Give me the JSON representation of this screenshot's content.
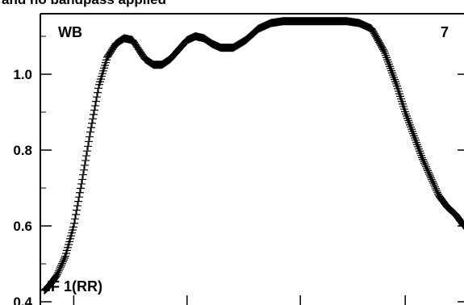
{
  "chart_data": {
    "type": "scatter",
    "title": "and no bandpass applied",
    "panel_label": "WB",
    "panel_number": "7",
    "series_label": "IF 1(RR)",
    "marker": "plus",
    "color": "#000000",
    "grid": false,
    "ylim": [
      0.4,
      1.15
    ],
    "xlim": [
      0,
      1
    ],
    "y_ticks": [
      {
        "value": 0.4,
        "label": "0.4"
      },
      {
        "value": 0.6,
        "label": "0.6"
      },
      {
        "value": 0.8,
        "label": "0.8"
      },
      {
        "value": 1.0,
        "label": "1.0"
      }
    ],
    "x_tick_labels": [],
    "profile": {
      "x": [
        0.0,
        0.01,
        0.03,
        0.05,
        0.07,
        0.09,
        0.11,
        0.13,
        0.15,
        0.17,
        0.19,
        0.21,
        0.225,
        0.24,
        0.26,
        0.28,
        0.3,
        0.32,
        0.34,
        0.36,
        0.38,
        0.4,
        0.42,
        0.45,
        0.48,
        0.51,
        0.54,
        0.57,
        0.6,
        0.63,
        0.66,
        0.69,
        0.72,
        0.75,
        0.78,
        0.81,
        0.84,
        0.86,
        0.88,
        0.9,
        0.92,
        0.94,
        0.96,
        0.98,
        1.0
      ],
      "y": [
        0.43,
        0.44,
        0.47,
        0.52,
        0.6,
        0.72,
        0.85,
        0.97,
        1.045,
        1.08,
        1.095,
        1.09,
        1.065,
        1.04,
        1.025,
        1.025,
        1.04,
        1.065,
        1.09,
        1.1,
        1.095,
        1.08,
        1.07,
        1.07,
        1.09,
        1.12,
        1.135,
        1.14,
        1.14,
        1.14,
        1.14,
        1.14,
        1.14,
        1.135,
        1.12,
        1.06,
        0.97,
        0.9,
        0.84,
        0.78,
        0.73,
        0.68,
        0.65,
        0.63,
        0.6
      ]
    }
  }
}
